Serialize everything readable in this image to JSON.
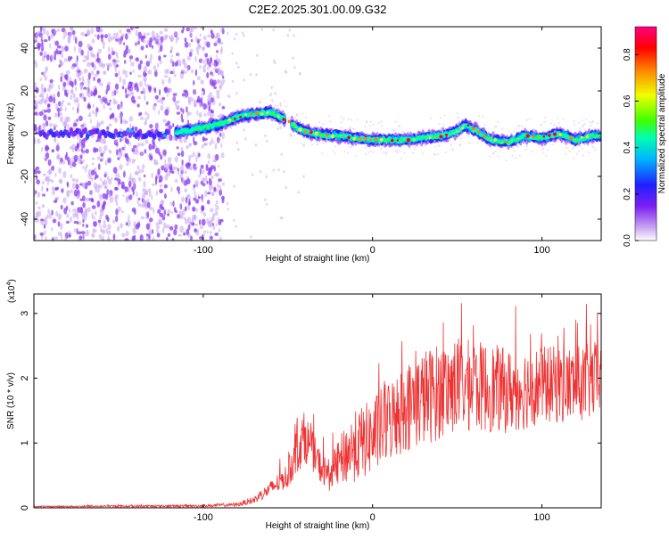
{
  "title": "C2E2.2025.301.00.09.G32",
  "chart_data": [
    {
      "type": "heatmap",
      "xlabel": "Height of straight line (km)",
      "ylabel": "Frequency (Hz)",
      "xlim": [
        -200,
        135
      ],
      "ylim": [
        -50,
        50
      ],
      "x_ticks": [
        -100,
        0,
        100
      ],
      "y_ticks": [
        -40,
        -20,
        0,
        20,
        40
      ],
      "colorbar": {
        "label": "Normalized spectral amplitude",
        "range": [
          0,
          0.92
        ],
        "ticks": [
          0.0,
          0.2,
          0.4,
          0.6,
          0.8
        ],
        "colormap": [
          "#ffffff",
          "#c9a6f2",
          "#7b1ff2",
          "#2020ff",
          "#00b4ff",
          "#00ffb0",
          "#40ff00",
          "#f0ff00",
          "#ff8000",
          "#ff0000",
          "#ff0080"
        ]
      },
      "trace_track": {
        "x": [
          -115,
          -95,
          -85,
          -75,
          -60,
          -50,
          -45,
          -40,
          -30,
          -20,
          0,
          20,
          40,
          50,
          55,
          60,
          70,
          80,
          90,
          100,
          110,
          120,
          130,
          135
        ],
        "y": [
          0.5,
          3.5,
          6,
          9,
          10,
          6,
          3,
          1,
          -0.5,
          -1,
          -3,
          -3,
          -1,
          1,
          4,
          2,
          -3,
          -4,
          -1,
          -2,
          0,
          -3,
          -1,
          -1
        ]
      }
    },
    {
      "type": "line",
      "xlabel": "Height of straight line (km)",
      "ylabel": "SNR (10 * v/v)",
      "y_scale_label": "(x10",
      "y_scale_exp": "4",
      "y_scale_close": ")",
      "xlim": [
        -200,
        135
      ],
      "ylim": [
        0,
        3.3
      ],
      "x_ticks": [
        -100,
        0,
        100
      ],
      "y_ticks": [
        0,
        1,
        2,
        3
      ],
      "series": [
        {
          "color": "#ee3333",
          "envelope_x": [
            -200,
            -100,
            -80,
            -70,
            -60,
            -50,
            -45,
            -40,
            -35,
            -30,
            -25,
            -20,
            -15,
            -10,
            0,
            10,
            20,
            30,
            40,
            50,
            60,
            70,
            80,
            90,
            100,
            110,
            120,
            130,
            135
          ],
          "envelope_mean": [
            0.02,
            0.03,
            0.05,
            0.12,
            0.3,
            0.5,
            0.9,
            1.1,
            0.85,
            0.6,
            0.5,
            0.7,
            0.85,
            0.95,
            1.1,
            1.35,
            1.55,
            1.7,
            1.8,
            1.9,
            1.88,
            1.85,
            1.8,
            1.85,
            1.9,
            1.9,
            1.9,
            1.95,
            2.0
          ],
          "envelope_spread": [
            0.01,
            0.02,
            0.03,
            0.06,
            0.12,
            0.2,
            0.4,
            0.4,
            0.3,
            0.25,
            0.25,
            0.35,
            0.5,
            0.55,
            0.6,
            0.65,
            0.7,
            0.75,
            0.75,
            0.75,
            0.7,
            0.7,
            0.65,
            0.65,
            0.6,
            0.6,
            0.6,
            0.6,
            0.6
          ]
        }
      ]
    }
  ]
}
